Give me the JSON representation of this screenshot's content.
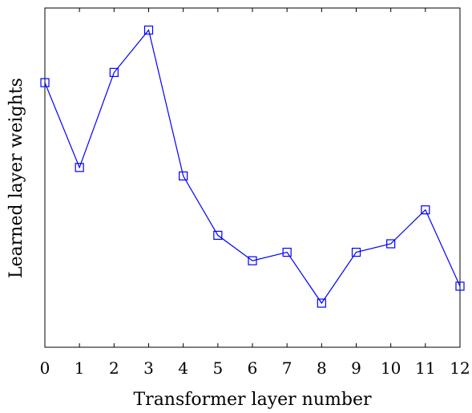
{
  "chart_data": {
    "type": "line",
    "title": "",
    "xlabel": "Transformer layer number",
    "ylabel": "Learned layer weights",
    "x": [
      0,
      1,
      2,
      3,
      4,
      5,
      6,
      7,
      8,
      9,
      10,
      11,
      12
    ],
    "series": [
      {
        "name": "",
        "values": [
          0.78,
          0.53,
          0.81,
          0.935,
          0.505,
          0.33,
          0.255,
          0.28,
          0.13,
          0.28,
          0.305,
          0.405,
          0.18
        ],
        "color": "#0000ff",
        "marker": "square"
      }
    ],
    "xlim": [
      0,
      12
    ],
    "ylim": [
      0,
      1
    ],
    "x_ticks": [
      "0",
      "1",
      "2",
      "3",
      "4",
      "5",
      "6",
      "7",
      "8",
      "9",
      "10",
      "11",
      "12"
    ],
    "y_ticks_shown": false,
    "grid": false,
    "legend": "none"
  }
}
